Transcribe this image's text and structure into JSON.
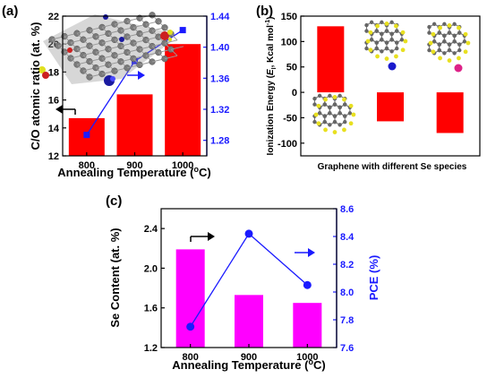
{
  "colors": {
    "red": "#ff0000",
    "blue": "#1a1aff",
    "magenta": "#ff00ff",
    "black": "#000000"
  },
  "chart_data": [
    {
      "panel": "(a)",
      "type": "bar",
      "categories": [
        "800",
        "900",
        "1000"
      ],
      "bar_series": {
        "values": [
          14.7,
          16.4,
          20.0
        ],
        "axis": "left",
        "color": "#ff0000"
      },
      "line_series": {
        "values": [
          1.287,
          1.382,
          1.422
        ],
        "axis": "right",
        "color": "#1a1aff"
      },
      "xlabel": "Annealing Temperature (",
      "xlabel_sup": "o",
      "xlabel_end": "C)",
      "ylabel": "C/O atomic ratio (at. %)",
      "y2label": "",
      "ylim": [
        12,
        22
      ],
      "yticks": [
        "12",
        "14",
        "16",
        "18",
        "20",
        "22"
      ],
      "y2lim": [
        1.26,
        1.44
      ],
      "y2ticks": [
        "1.28",
        "1.32",
        "1.36",
        "1.40",
        "1.44"
      ],
      "grid": false,
      "inset": "graphene-lattice-molecular-model"
    },
    {
      "panel": "(b)",
      "type": "bar",
      "categories": [
        "",
        "",
        ""
      ],
      "values": [
        130,
        -57,
        -80
      ],
      "color": "#ff0000",
      "xlabel": "Graphene with different Se species",
      "ylabel_pre": "Ionization Energy (",
      "ylabel_em": "E",
      "ylabel_sub": "I",
      "ylabel_post": ", Kcal mol",
      "ylabel_sup": "-1",
      "ylabel_end": ")",
      "ylim": [
        -125,
        150
      ],
      "yticks": [
        "-100",
        "-50",
        "0",
        "50",
        "100",
        "150"
      ],
      "grid": false,
      "insets": [
        "graphene-se-species-1",
        "graphene-se-species-2",
        "pristine-graphene"
      ]
    },
    {
      "panel": "(c)",
      "type": "bar",
      "categories": [
        "800",
        "900",
        "1000"
      ],
      "bar_series": {
        "values": [
          2.19,
          1.73,
          1.65
        ],
        "axis": "left",
        "color": "#ff00ff"
      },
      "line_series": {
        "values": [
          7.75,
          8.42,
          8.05
        ],
        "axis": "right",
        "color": "#1a1aff"
      },
      "xlabel": "Annealing Temperature (",
      "xlabel_sup": "o",
      "xlabel_end": "C)",
      "ylabel": "Se Content (at. %)",
      "y2label": "PCE (%)",
      "ylim": [
        1.2,
        2.6
      ],
      "yticks": [
        "1.2",
        "1.6",
        "2.0",
        "2.4"
      ],
      "y2lim": [
        7.6,
        8.6
      ],
      "y2ticks": [
        "7.6",
        "7.8",
        "8.0",
        "8.2",
        "8.4",
        "8.6"
      ],
      "grid": false
    }
  ]
}
